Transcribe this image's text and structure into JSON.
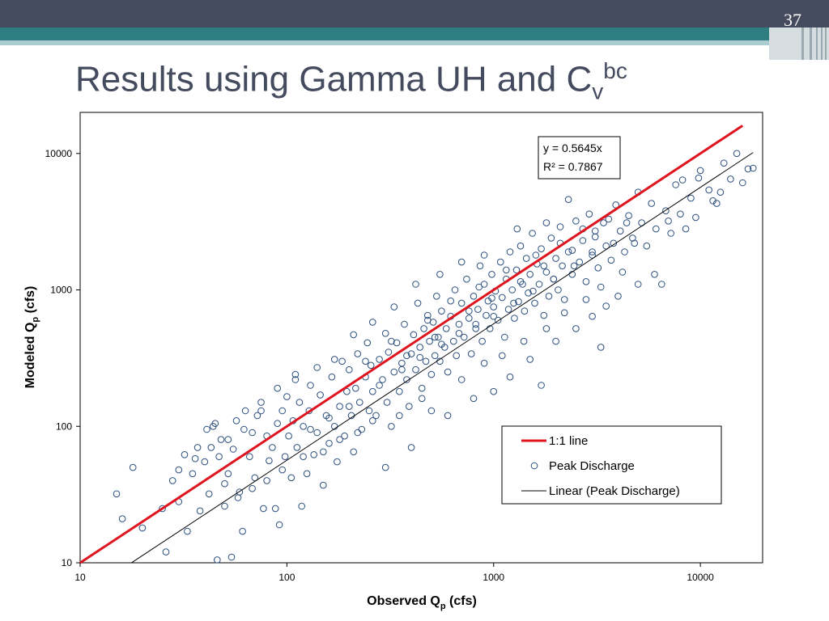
{
  "slide": {
    "number": "37",
    "title_main": "Results using Gamma UH and C",
    "title_sub": "v",
    "title_sup": "bc"
  },
  "colors": {
    "header": "#444b5e",
    "teal": "#2e7d80",
    "one_to_one": "#e0141e",
    "points": "#2b4f7e",
    "fit": "#000000"
  },
  "chart_data": {
    "type": "scatter",
    "x_scale": "log",
    "y_scale": "log",
    "xlim": [
      10,
      20000
    ],
    "ylim": [
      10,
      20000
    ],
    "x_ticks": [
      10,
      100,
      1000,
      10000
    ],
    "y_ticks": [
      10,
      100,
      1000,
      10000
    ],
    "x_tick_labels": [
      "10",
      "100",
      "1000",
      "10000"
    ],
    "y_tick_labels": [
      "10",
      "100",
      "1000",
      "10000"
    ],
    "xlabel_main": "Observed Q",
    "xlabel_sub": "p",
    "xlabel_rest": " (cfs)",
    "ylabel_main": "Modeled Q",
    "ylabel_sub": "p",
    "ylabel_rest": " (cfs)",
    "grid": false,
    "legend_position": "bottom-right",
    "legend": [
      "1:1 line",
      "Peak Discharge",
      "Linear (Peak Discharge)"
    ],
    "equation_line1": "y = 0.5645x",
    "equation_line2": "R² = 0.7867",
    "one_to_one": {
      "x": [
        10,
        16000
      ],
      "y": [
        10,
        16000
      ]
    },
    "fit": {
      "slope": 0.5645,
      "x": [
        17.7,
        18000
      ]
    },
    "series": [
      {
        "name": "Peak Discharge",
        "points": [
          [
            15,
            32
          ],
          [
            16,
            21
          ],
          [
            18,
            50
          ],
          [
            20,
            18
          ],
          [
            25,
            25
          ],
          [
            26,
            12
          ],
          [
            28,
            40
          ],
          [
            30,
            28
          ],
          [
            32,
            62
          ],
          [
            33,
            17
          ],
          [
            35,
            45
          ],
          [
            37,
            70
          ],
          [
            38,
            24
          ],
          [
            40,
            55
          ],
          [
            41,
            95
          ],
          [
            42,
            32
          ],
          [
            44,
            100
          ],
          [
            45,
            105
          ],
          [
            46,
            10.5
          ],
          [
            47,
            60
          ],
          [
            48,
            80
          ],
          [
            50,
            38
          ],
          [
            52,
            45
          ],
          [
            54,
            11
          ],
          [
            55,
            68
          ],
          [
            57,
            110
          ],
          [
            59,
            33
          ],
          [
            61,
            17
          ],
          [
            63,
            130
          ],
          [
            66,
            60
          ],
          [
            68,
            90
          ],
          [
            70,
            42
          ],
          [
            72,
            120
          ],
          [
            75,
            150
          ],
          [
            77,
            25
          ],
          [
            80,
            85
          ],
          [
            82,
            56
          ],
          [
            85,
            70
          ],
          [
            88,
            25
          ],
          [
            90,
            105
          ],
          [
            92,
            19
          ],
          [
            95,
            130
          ],
          [
            98,
            60
          ],
          [
            100,
            165
          ],
          [
            102,
            85
          ],
          [
            105,
            42
          ],
          [
            107,
            110
          ],
          [
            110,
            220
          ],
          [
            112,
            70
          ],
          [
            115,
            150
          ],
          [
            118,
            26
          ],
          [
            120,
            100
          ],
          [
            125,
            45
          ],
          [
            128,
            130
          ],
          [
            130,
            200
          ],
          [
            135,
            62
          ],
          [
            140,
            90
          ],
          [
            145,
            170
          ],
          [
            150,
            37
          ],
          [
            155,
            120
          ],
          [
            160,
            75
          ],
          [
            165,
            230
          ],
          [
            170,
            100
          ],
          [
            175,
            55
          ],
          [
            180,
            140
          ],
          [
            185,
            300
          ],
          [
            190,
            85
          ],
          [
            195,
            180
          ],
          [
            200,
            260
          ],
          [
            205,
            120
          ],
          [
            210,
            65
          ],
          [
            215,
            190
          ],
          [
            220,
            340
          ],
          [
            225,
            150
          ],
          [
            230,
            95
          ],
          [
            240,
            230
          ],
          [
            245,
            410
          ],
          [
            250,
            130
          ],
          [
            255,
            280
          ],
          [
            260,
            180
          ],
          [
            270,
            120
          ],
          [
            280,
            310
          ],
          [
            290,
            220
          ],
          [
            300,
            480
          ],
          [
            305,
            150
          ],
          [
            310,
            350
          ],
          [
            320,
            100
          ],
          [
            330,
            250
          ],
          [
            340,
            410
          ],
          [
            350,
            180
          ],
          [
            360,
            290
          ],
          [
            370,
            560
          ],
          [
            380,
            220
          ],
          [
            390,
            140
          ],
          [
            400,
            340
          ],
          [
            410,
            470
          ],
          [
            420,
            260
          ],
          [
            430,
            800
          ],
          [
            440,
            380
          ],
          [
            450,
            190
          ],
          [
            460,
            520
          ],
          [
            470,
            300
          ],
          [
            480,
            650
          ],
          [
            490,
            420
          ],
          [
            500,
            240
          ],
          [
            510,
            580
          ],
          [
            520,
            330
          ],
          [
            530,
            900
          ],
          [
            540,
            450
          ],
          [
            550,
            300
          ],
          [
            560,
            700
          ],
          [
            580,
            380
          ],
          [
            590,
            520
          ],
          [
            600,
            250
          ],
          [
            620,
            640
          ],
          [
            640,
            420
          ],
          [
            650,
            1000
          ],
          [
            660,
            330
          ],
          [
            680,
            560
          ],
          [
            700,
            800
          ],
          [
            720,
            450
          ],
          [
            740,
            1200
          ],
          [
            760,
            620
          ],
          [
            780,
            340
          ],
          [
            800,
            900
          ],
          [
            820,
            520
          ],
          [
            840,
            720
          ],
          [
            860,
            1500
          ],
          [
            880,
            420
          ],
          [
            900,
            1100
          ],
          [
            920,
            650
          ],
          [
            940,
            830
          ],
          [
            960,
            520
          ],
          [
            980,
            1300
          ],
          [
            1000,
            750
          ],
          [
            1020,
            980
          ],
          [
            1050,
            600
          ],
          [
            1080,
            1600
          ],
          [
            1100,
            880
          ],
          [
            1130,
            450
          ],
          [
            1150,
            1200
          ],
          [
            1180,
            720
          ],
          [
            1200,
            1900
          ],
          [
            1230,
            1000
          ],
          [
            1260,
            620
          ],
          [
            1290,
            1400
          ],
          [
            1320,
            820
          ],
          [
            1350,
            2100
          ],
          [
            1380,
            1100
          ],
          [
            1410,
            700
          ],
          [
            1440,
            1700
          ],
          [
            1470,
            950
          ],
          [
            1500,
            1300
          ],
          [
            1540,
            2600
          ],
          [
            1580,
            800
          ],
          [
            1620,
            1550
          ],
          [
            1660,
            1100
          ],
          [
            1700,
            2000
          ],
          [
            1750,
            650
          ],
          [
            1800,
            1350
          ],
          [
            1850,
            900
          ],
          [
            1900,
            2400
          ],
          [
            1950,
            1200
          ],
          [
            2000,
            1700
          ],
          [
            2050,
            1000
          ],
          [
            2100,
            2900
          ],
          [
            2150,
            1500
          ],
          [
            2200,
            850
          ],
          [
            2300,
            1900
          ],
          [
            2400,
            1300
          ],
          [
            2500,
            3200
          ],
          [
            2600,
            1600
          ],
          [
            2700,
            2300
          ],
          [
            2800,
            1150
          ],
          [
            2900,
            3600
          ],
          [
            3000,
            1900
          ],
          [
            3100,
            2700
          ],
          [
            3200,
            1450
          ],
          [
            3300,
            380
          ],
          [
            3400,
            3100
          ],
          [
            3500,
            2100
          ],
          [
            3700,
            1650
          ],
          [
            3900,
            4200
          ],
          [
            4100,
            2700
          ],
          [
            4300,
            1900
          ],
          [
            4500,
            3500
          ],
          [
            4700,
            2400
          ],
          [
            5000,
            5200
          ],
          [
            5200,
            3100
          ],
          [
            5500,
            2100
          ],
          [
            5800,
            4300
          ],
          [
            6100,
            2800
          ],
          [
            6500,
            1100
          ],
          [
            6800,
            3800
          ],
          [
            7200,
            2600
          ],
          [
            7600,
            5900
          ],
          [
            8000,
            3600
          ],
          [
            8500,
            2800
          ],
          [
            9000,
            4700
          ],
          [
            9500,
            3400
          ],
          [
            10000,
            7500
          ],
          [
            11000,
            5400
          ],
          [
            12000,
            4300
          ],
          [
            13000,
            8500
          ],
          [
            14000,
            6500
          ],
          [
            15000,
            10000
          ],
          [
            16000,
            6100
          ],
          [
            17000,
            7700
          ],
          [
            18000,
            7800
          ],
          [
            12500,
            5200
          ],
          [
            9800,
            6600
          ],
          [
            11500,
            4500
          ],
          [
            7000,
            3200
          ],
          [
            8200,
            6400
          ],
          [
            4800,
            2200
          ],
          [
            2300,
            4600
          ],
          [
            1800,
            3100
          ],
          [
            1300,
            2800
          ],
          [
            900,
            1800
          ],
          [
            700,
            1600
          ],
          [
            550,
            1300
          ],
          [
            420,
            1100
          ],
          [
            330,
            750
          ],
          [
            260,
            580
          ],
          [
            210,
            470
          ],
          [
            170,
            310
          ],
          [
            140,
            270
          ],
          [
            110,
            240
          ],
          [
            90,
            190
          ],
          [
            75,
            130
          ],
          [
            62,
            95
          ],
          [
            52,
            80
          ],
          [
            43,
            70
          ],
          [
            36,
            58
          ],
          [
            30,
            48
          ],
          [
            300,
            50
          ],
          [
            400,
            70
          ],
          [
            500,
            130
          ],
          [
            600,
            120
          ],
          [
            800,
            160
          ],
          [
            1000,
            180
          ],
          [
            1200,
            230
          ],
          [
            1500,
            310
          ],
          [
            1700,
            200
          ],
          [
            2000,
            420
          ],
          [
            2500,
            520
          ],
          [
            3000,
            640
          ],
          [
            3500,
            760
          ],
          [
            4000,
            900
          ],
          [
            5000,
            1100
          ],
          [
            6000,
            1300
          ],
          [
            350,
            120
          ],
          [
            450,
            160
          ],
          [
            700,
            220
          ],
          [
            900,
            290
          ],
          [
            1100,
            330
          ],
          [
            1400,
            420
          ],
          [
            1800,
            520
          ],
          [
            2200,
            680
          ],
          [
            2800,
            850
          ],
          [
            3300,
            1050
          ],
          [
            4200,
            1350
          ],
          [
            150,
            65
          ],
          [
            180,
            80
          ],
          [
            220,
            90
          ],
          [
            260,
            110
          ],
          [
            240,
            300
          ],
          [
            320,
            420
          ],
          [
            480,
            600
          ],
          [
            620,
            830
          ],
          [
            850,
            1050
          ],
          [
            1150,
            1400
          ],
          [
            1600,
            1800
          ],
          [
            2100,
            2200
          ],
          [
            2700,
            2800
          ],
          [
            3600,
            3300
          ],
          [
            380,
            330
          ],
          [
            520,
            450
          ],
          [
            760,
            700
          ],
          [
            980,
            870
          ],
          [
            1350,
            1150
          ],
          [
            1750,
            1500
          ],
          [
            2400,
            1950
          ],
          [
            3100,
            2450
          ],
          [
            4400,
            3100
          ],
          [
            280,
            200
          ],
          [
            360,
            260
          ],
          [
            440,
            320
          ],
          [
            560,
            400
          ],
          [
            680,
            480
          ],
          [
            820,
            560
          ],
          [
            1000,
            640
          ],
          [
            1250,
            800
          ],
          [
            1550,
            980
          ],
          [
            1950,
            1200
          ],
          [
            2450,
            1500
          ],
          [
            3000,
            1800
          ],
          [
            3800,
            2200
          ],
          [
            200,
            140
          ],
          [
            160,
            115
          ],
          [
            130,
            95
          ],
          [
            120,
            60
          ],
          [
            95,
            48
          ],
          [
            80,
            40
          ],
          [
            68,
            35
          ],
          [
            58,
            30
          ],
          [
            50,
            26
          ]
        ]
      }
    ]
  }
}
